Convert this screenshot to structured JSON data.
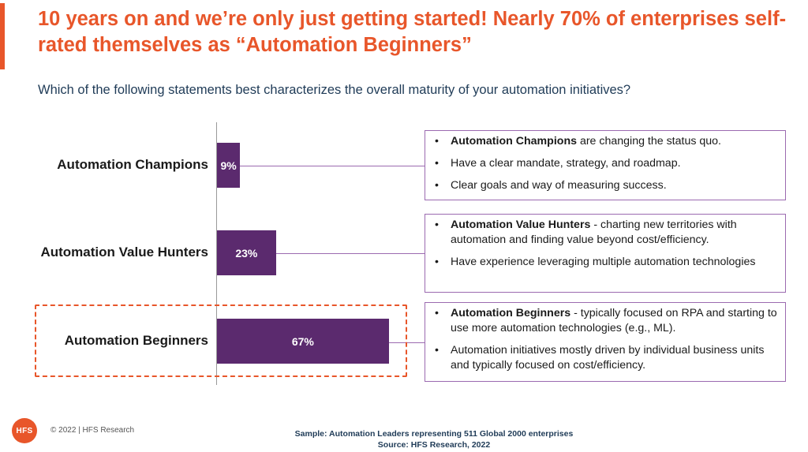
{
  "header": {
    "title": "10 years on and we’re only just getting started! Nearly 70% of enterprises self-rated themselves as “Automation Beginners”",
    "question": "Which of the following statements best characterizes the overall maturity of your automation initiatives?"
  },
  "chart_data": {
    "type": "bar",
    "orientation": "horizontal",
    "categories": [
      "Automation Champions",
      "Automation Value Hunters",
      "Automation Beginners"
    ],
    "values": [
      9,
      23,
      67
    ],
    "value_labels": [
      "9%",
      "23%",
      "67%"
    ],
    "unit": "%",
    "highlighted_category": "Automation Beginners",
    "bar_color": "#5b2a6e",
    "title": "",
    "xlabel": "",
    "ylabel": "",
    "grid": false,
    "legend": false
  },
  "callouts": [
    {
      "bullets": [
        {
          "bold": "Automation Champions",
          "text": " are changing the status quo."
        },
        {
          "bold": "",
          "text": "Have a clear mandate, strategy, and roadmap."
        },
        {
          "bold": "",
          "text": "Clear goals and way of measuring success."
        }
      ]
    },
    {
      "bullets": [
        {
          "bold": "Automation Value Hunters",
          "text": " - charting new territories with automation and finding value beyond cost/efficiency."
        },
        {
          "bold": "",
          "text": "Have experience leveraging multiple automation technologies"
        }
      ]
    },
    {
      "bullets": [
        {
          "bold": "Automation Beginners",
          "text": " - typically focused on RPA and starting to use more automation technologies (e.g., ML)."
        },
        {
          "bold": "",
          "text": "Automation initiatives mostly driven by individual business units and typically focused on cost/efficiency."
        }
      ]
    }
  ],
  "footer": {
    "logo_text": "HFS",
    "copyright": "© 2022 | HFS Research",
    "sample": "Sample: Automation Leaders representing 511 Global 2000 enterprises",
    "source": "Source: HFS Research, 2022"
  },
  "colors": {
    "accent": "#e8562a",
    "bar": "#5b2a6e",
    "question_text": "#1f3b57",
    "callout_border": "#9b6ab0"
  }
}
